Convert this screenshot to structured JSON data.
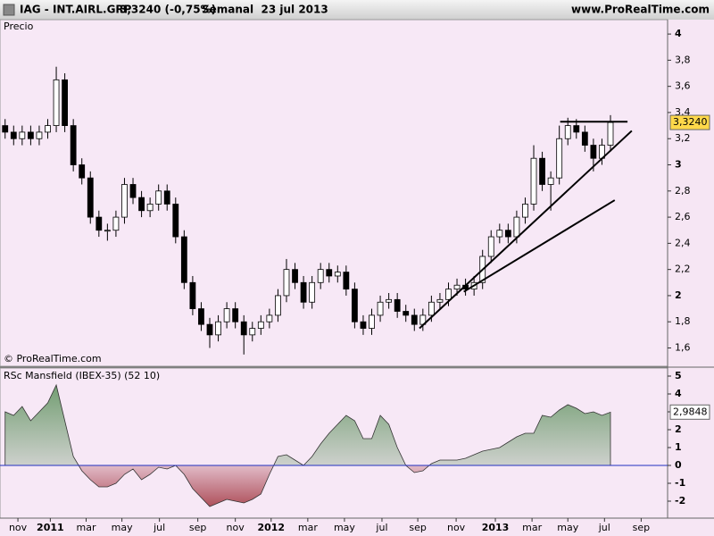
{
  "header": {
    "symbol": "IAG - INT.AIRL.GRP",
    "change": "3,3240 (-0,75%)",
    "period": "Semanal  23 jul 2013",
    "site": "www.ProRealTime.com"
  },
  "chart_data": [
    {
      "type": "candlestick",
      "title": "Precio",
      "credit": "© ProRealTime.com",
      "xlim": [
        -0.6,
        77.7
      ],
      "ylim": [
        1.46,
        4.11
      ],
      "yticks": [
        {
          "value": 1.6,
          "label": "1,6"
        },
        {
          "value": 1.8,
          "label": "1,8"
        },
        2,
        {
          "value": 2.2,
          "label": "2,2"
        },
        {
          "value": 2.4,
          "label": "2,4"
        },
        {
          "value": 2.6,
          "label": "2,6"
        },
        {
          "value": 2.8,
          "label": "2,8"
        },
        3,
        {
          "value": 3.2,
          "label": "3,2"
        },
        {
          "value": 3.4,
          "label": "3,4"
        },
        {
          "value": 3.6,
          "label": "3,6"
        },
        {
          "value": 3.8,
          "label": "3,8"
        },
        4
      ],
      "candles": [
        [
          3.3,
          3.35,
          3.2,
          3.25
        ],
        [
          3.25,
          3.3,
          3.15,
          3.2
        ],
        [
          3.2,
          3.3,
          3.15,
          3.25
        ],
        [
          3.25,
          3.3,
          3.15,
          3.2
        ],
        [
          3.2,
          3.3,
          3.15,
          3.25
        ],
        [
          3.25,
          3.35,
          3.2,
          3.3
        ],
        [
          3.3,
          3.75,
          3.25,
          3.65
        ],
        [
          3.65,
          3.7,
          3.25,
          3.3
        ],
        [
          3.3,
          3.35,
          2.95,
          3.0
        ],
        [
          3.0,
          3.05,
          2.85,
          2.9
        ],
        [
          2.9,
          2.95,
          2.55,
          2.6
        ],
        [
          2.6,
          2.65,
          2.45,
          2.5
        ],
        [
          2.5,
          2.55,
          2.42,
          2.5
        ],
        [
          2.5,
          2.65,
          2.45,
          2.6
        ],
        [
          2.6,
          2.9,
          2.55,
          2.85
        ],
        [
          2.85,
          2.9,
          2.7,
          2.75
        ],
        [
          2.75,
          2.8,
          2.6,
          2.65
        ],
        [
          2.65,
          2.75,
          2.6,
          2.7
        ],
        [
          2.7,
          2.85,
          2.65,
          2.8
        ],
        [
          2.8,
          2.85,
          2.65,
          2.7
        ],
        [
          2.7,
          2.75,
          2.4,
          2.45
        ],
        [
          2.45,
          2.5,
          2.05,
          2.1
        ],
        [
          2.1,
          2.15,
          1.85,
          1.9
        ],
        [
          1.9,
          1.95,
          1.73,
          1.78
        ],
        [
          1.78,
          1.83,
          1.6,
          1.7
        ],
        [
          1.7,
          1.85,
          1.65,
          1.8
        ],
        [
          1.8,
          1.95,
          1.75,
          1.9
        ],
        [
          1.9,
          1.95,
          1.75,
          1.8
        ],
        [
          1.8,
          1.85,
          1.55,
          1.7
        ],
        [
          1.7,
          1.8,
          1.65,
          1.75
        ],
        [
          1.75,
          1.85,
          1.7,
          1.8
        ],
        [
          1.8,
          1.9,
          1.75,
          1.85
        ],
        [
          1.85,
          2.05,
          1.8,
          2.0
        ],
        [
          2.0,
          2.28,
          1.95,
          2.2
        ],
        [
          2.2,
          2.25,
          2.05,
          2.1
        ],
        [
          2.1,
          2.15,
          1.9,
          1.95
        ],
        [
          1.95,
          2.15,
          1.9,
          2.1
        ],
        [
          2.1,
          2.25,
          2.05,
          2.2
        ],
        [
          2.2,
          2.25,
          2.1,
          2.15
        ],
        [
          2.15,
          2.23,
          2.1,
          2.18
        ],
        [
          2.18,
          2.23,
          2.0,
          2.05
        ],
        [
          2.05,
          2.1,
          1.75,
          1.8
        ],
        [
          1.8,
          1.85,
          1.7,
          1.75
        ],
        [
          1.75,
          1.9,
          1.7,
          1.85
        ],
        [
          1.85,
          2.0,
          1.8,
          1.95
        ],
        [
          1.95,
          2.02,
          1.9,
          1.97
        ],
        [
          1.97,
          2.02,
          1.83,
          1.88
        ],
        [
          1.88,
          1.93,
          1.8,
          1.85
        ],
        [
          1.85,
          1.9,
          1.73,
          1.78
        ],
        [
          1.78,
          1.9,
          1.73,
          1.85
        ],
        [
          1.85,
          2.0,
          1.8,
          1.95
        ],
        [
          1.95,
          2.02,
          1.9,
          1.97
        ],
        [
          1.97,
          2.1,
          1.92,
          2.05
        ],
        [
          2.05,
          2.13,
          2.0,
          2.08
        ],
        [
          2.08,
          2.13,
          2.0,
          2.05
        ],
        [
          2.05,
          2.15,
          2.0,
          2.1
        ],
        [
          2.1,
          2.35,
          2.05,
          2.3
        ],
        [
          2.3,
          2.5,
          2.25,
          2.45
        ],
        [
          2.45,
          2.55,
          2.4,
          2.5
        ],
        [
          2.5,
          2.55,
          2.4,
          2.45
        ],
        [
          2.45,
          2.65,
          2.4,
          2.6
        ],
        [
          2.6,
          2.75,
          2.55,
          2.7
        ],
        [
          2.7,
          3.15,
          2.65,
          3.05
        ],
        [
          3.05,
          3.1,
          2.8,
          2.85
        ],
        [
          2.85,
          2.95,
          2.65,
          2.9
        ],
        [
          2.9,
          3.3,
          2.85,
          3.2
        ],
        [
          3.2,
          3.36,
          3.15,
          3.3
        ],
        [
          3.3,
          3.35,
          3.2,
          3.25
        ],
        [
          3.25,
          3.3,
          3.1,
          3.15
        ],
        [
          3.15,
          3.2,
          2.95,
          3.05
        ],
        [
          3.05,
          3.2,
          3.0,
          3.15
        ],
        [
          3.15,
          3.38,
          3.1,
          3.324
        ]
      ],
      "up_color": "#ffffff",
      "down_color": "#000000",
      "trendlines": [
        {
          "x": [
            65.1,
            73
          ],
          "y": [
            3.33,
            3.33
          ]
        },
        {
          "x": [
            48.6,
            73.5
          ],
          "y": [
            1.75,
            3.26
          ]
        },
        {
          "x": [
            53.8,
            71.5
          ],
          "y": [
            2.03,
            2.73
          ]
        }
      ],
      "last": {
        "value": 3.324,
        "label": "3,3240"
      }
    },
    {
      "type": "area",
      "title": "RSc Mansfield (IBEX-35) (52 10)",
      "xlim": [
        -0.6,
        77.7
      ],
      "ylim": [
        -2.95,
        5.45
      ],
      "yticks": [
        -2,
        -1,
        0,
        1,
        2,
        3,
        4,
        5
      ],
      "values": [
        3,
        2.8,
        3.3,
        2.5,
        3,
        3.5,
        4.5,
        2.5,
        0.5,
        -0.3,
        -0.8,
        -1.2,
        -1.2,
        -1,
        -0.5,
        -0.2,
        -0.8,
        -0.5,
        -0.1,
        -0.2,
        0,
        -0.5,
        -1.3,
        -1.8,
        -2.3,
        -2.1,
        -1.9,
        -2,
        -2.1,
        -1.9,
        -1.6,
        -0.5,
        0.5,
        0.6,
        0.3,
        0,
        0.5,
        1.2,
        1.8,
        2.3,
        2.8,
        2.5,
        1.5,
        1.5,
        2.8,
        2.3,
        1,
        0,
        -0.4,
        -0.3,
        0.1,
        0.3,
        0.3,
        0.3,
        0.4,
        0.6,
        0.8,
        0.9,
        1,
        1.3,
        1.6,
        1.8,
        1.8,
        2.8,
        2.7,
        3.1,
        3.4,
        3.2,
        2.9,
        3.0,
        2.8,
        2.98
      ],
      "positive_color": "#4f8a4f",
      "negative_color": "#a0323c",
      "zero_line_color": "#2030c0",
      "last": {
        "value": 2.9848,
        "label": "2,9848"
      },
      "xticks": [
        {
          "value": 1.5,
          "label": "nov"
        },
        {
          "value": 5.3,
          "label": "2011"
        },
        {
          "value": 9.5,
          "label": "mar"
        },
        {
          "value": 13.7,
          "label": "may"
        },
        {
          "value": 18.1,
          "label": "jul"
        },
        {
          "value": 22.6,
          "label": "sep"
        },
        {
          "value": 27.0,
          "label": "nov"
        },
        {
          "value": 31.2,
          "label": "2012"
        },
        {
          "value": 35.5,
          "label": "mar"
        },
        {
          "value": 39.8,
          "label": "may"
        },
        {
          "value": 44.2,
          "label": "jul"
        },
        {
          "value": 48.4,
          "label": "sep"
        },
        {
          "value": 52.9,
          "label": "nov"
        },
        {
          "value": 57.5,
          "label": "2013"
        },
        {
          "value": 61.8,
          "label": "mar"
        },
        {
          "value": 66.0,
          "label": "may"
        },
        {
          "value": 70.3,
          "label": "jul"
        },
        {
          "value": 74.6,
          "label": "sep"
        }
      ]
    }
  ]
}
